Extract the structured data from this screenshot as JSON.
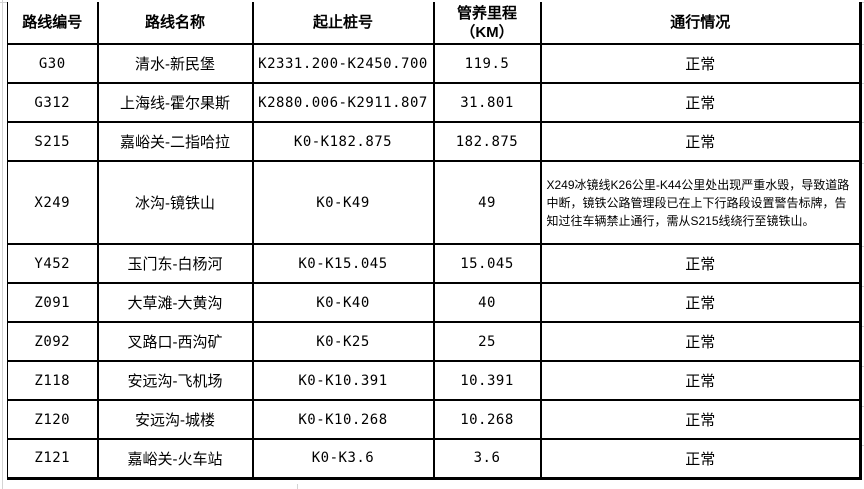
{
  "table": {
    "headers": [
      "路线编号",
      "路线名称",
      "起止桩号",
      "管养里程\n（KM）",
      "通行情况"
    ],
    "rows": [
      {
        "code": "G30",
        "name": "清水-新民堡",
        "stake": "K2331.200-K2450.700",
        "km": "119.5",
        "status": "正常"
      },
      {
        "code": "G312",
        "name": "上海线-霍尔果斯",
        "stake": "K2880.006-K2911.807",
        "km": "31.801",
        "status": "正常"
      },
      {
        "code": "S215",
        "name": "嘉峪关-二指哈拉",
        "stake": "K0-K182.875",
        "km": "182.875",
        "status": "正常"
      },
      {
        "code": "X249",
        "name": "冰沟-镜铁山",
        "stake": "K0-K49",
        "km": "49",
        "status": "X249冰镜线K26公里-K44公里处出现严重水毁，导致道路中断，镜铁公路管理段已在上下行路段设置警告标牌，告知过往车辆禁止通行，需从S215线绕行至镜铁山。"
      },
      {
        "code": "Y452",
        "name": "玉门东-白杨河",
        "stake": "K0-K15.045",
        "km": "15.045",
        "status": "正常"
      },
      {
        "code": "Z091",
        "name": "大草滩-大黄沟",
        "stake": "K0-K40",
        "km": "40",
        "status": "正常"
      },
      {
        "code": "Z092",
        "name": "叉路口-西沟矿",
        "stake": "K0-K25",
        "km": "25",
        "status": "正常"
      },
      {
        "code": "Z118",
        "name": "安远沟-飞机场",
        "stake": "K0-K10.391",
        "km": "10.391",
        "status": "正常"
      },
      {
        "code": "Z120",
        "name": "安远沟-城楼",
        "stake": "K0-K10.268",
        "km": "10.268",
        "status": "正常"
      },
      {
        "code": "Z121",
        "name": "嘉峪关-火车站",
        "stake": "K0-K3.6",
        "km": "3.6",
        "status": "正常"
      }
    ],
    "normal_status_text": "正常"
  },
  "colors": {
    "cell_border": "#000000",
    "worksheet_gridline": "#d4d4d4",
    "text": "#000000",
    "background": "#ffffff"
  }
}
